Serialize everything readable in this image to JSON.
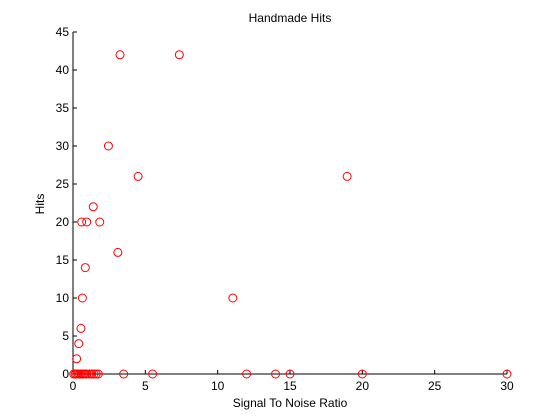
{
  "chart_data": {
    "type": "scatter",
    "title": "Handmade Hits",
    "xlabel": "Signal To Noise Ratio",
    "ylabel": "Hits",
    "xlim": [
      0,
      30
    ],
    "ylim": [
      0,
      45
    ],
    "xticks": [
      0,
      5,
      10,
      15,
      20,
      25,
      30
    ],
    "yticks": [
      0,
      5,
      10,
      15,
      20,
      25,
      30,
      35,
      40,
      45
    ],
    "grid": false,
    "marker": "circle-open",
    "marker_color": "#ff0000",
    "points": [
      {
        "x": 0.05,
        "y": 0
      },
      {
        "x": 0.15,
        "y": 0
      },
      {
        "x": 0.25,
        "y": 0
      },
      {
        "x": 0.35,
        "y": 0
      },
      {
        "x": 0.45,
        "y": 0
      },
      {
        "x": 0.55,
        "y": 0
      },
      {
        "x": 0.65,
        "y": 0
      },
      {
        "x": 0.75,
        "y": 0
      },
      {
        "x": 0.85,
        "y": 0
      },
      {
        "x": 0.95,
        "y": 0
      },
      {
        "x": 1.15,
        "y": 0
      },
      {
        "x": 1.3,
        "y": 0
      },
      {
        "x": 1.45,
        "y": 0
      },
      {
        "x": 1.6,
        "y": 0
      },
      {
        "x": 1.75,
        "y": 0
      },
      {
        "x": 3.5,
        "y": 0
      },
      {
        "x": 5.5,
        "y": 0
      },
      {
        "x": 12,
        "y": 0
      },
      {
        "x": 14,
        "y": 0
      },
      {
        "x": 15,
        "y": 0
      },
      {
        "x": 20,
        "y": 0
      },
      {
        "x": 30,
        "y": 0
      },
      {
        "x": 0.25,
        "y": 2
      },
      {
        "x": 0.4,
        "y": 4
      },
      {
        "x": 0.55,
        "y": 6
      },
      {
        "x": 0.65,
        "y": 10
      },
      {
        "x": 0.85,
        "y": 14
      },
      {
        "x": 3.1,
        "y": 16
      },
      {
        "x": 0.6,
        "y": 20
      },
      {
        "x": 0.95,
        "y": 20
      },
      {
        "x": 1.85,
        "y": 20
      },
      {
        "x": 1.4,
        "y": 22
      },
      {
        "x": 4.5,
        "y": 26
      },
      {
        "x": 2.45,
        "y": 30
      },
      {
        "x": 3.25,
        "y": 42
      },
      {
        "x": 7.35,
        "y": 42
      },
      {
        "x": 11.05,
        "y": 10
      },
      {
        "x": 18.95,
        "y": 26
      }
    ]
  }
}
